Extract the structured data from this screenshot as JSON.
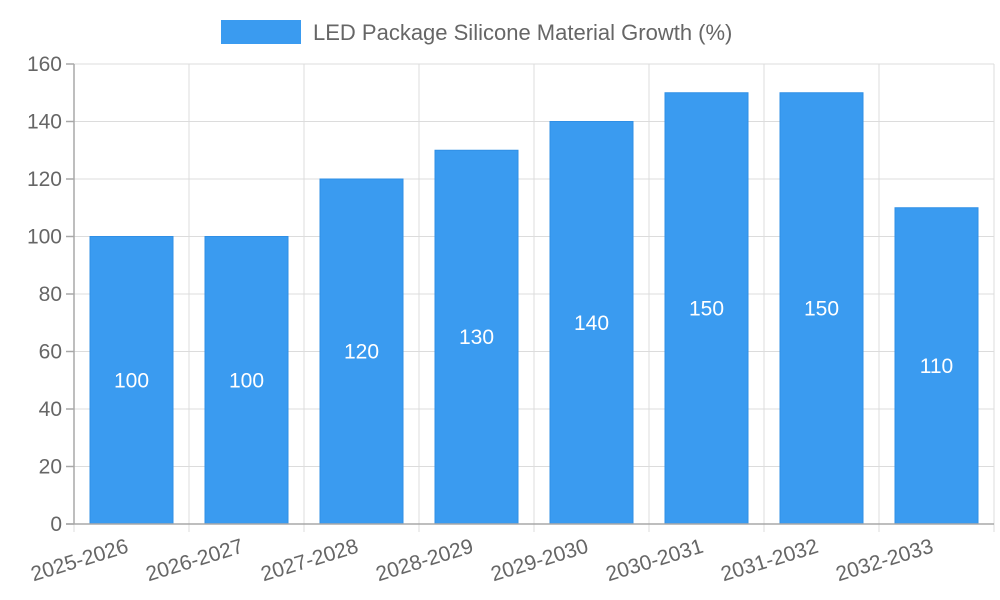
{
  "chart_data": {
    "type": "bar",
    "title": "",
    "legend": {
      "label": "LED Package Silicone Material Growth (%)",
      "position": "top-center"
    },
    "categories": [
      "2025-2026",
      "2026-2027",
      "2027-2028",
      "2028-2029",
      "2029-2030",
      "2030-2031",
      "2031-2032",
      "2032-2033"
    ],
    "series": [
      {
        "name": "LED Package Silicone Material Growth (%)",
        "values": [
          100,
          100,
          120,
          130,
          140,
          150,
          150,
          110
        ]
      }
    ],
    "ylim": [
      0,
      160
    ],
    "yticks": [
      0,
      20,
      40,
      60,
      80,
      100,
      120,
      140,
      160
    ],
    "xlabel": "",
    "ylabel": "",
    "grid": true,
    "data_labels": true,
    "colors": {
      "bar": "#3a9bf0",
      "bar_border": "#2f8fe6"
    }
  }
}
